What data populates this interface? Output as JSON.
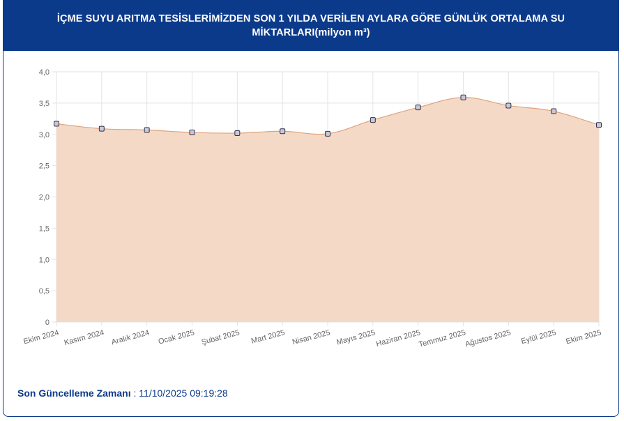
{
  "header": {
    "title": "İÇME SUYU ARITMA TESİSLERİMİZDEN SON 1 YILDA VERİLEN AYLARA GÖRE GÜNLÜK ORTALAMA SU MİKTARLARI(milyon m³)"
  },
  "footer": {
    "label": "Son Güncelleme Zamanı",
    "separator": " : ",
    "value": "11/10/2025 09:19:28"
  },
  "colors": {
    "header_bg": "#0c3a8a",
    "area_fill": "#f4d9c6",
    "line": "#e0a27c",
    "point_fill": "#c9c9d6",
    "point_stroke": "#2f2f4a",
    "grid": "#e3e3e3"
  },
  "chart_data": {
    "type": "area",
    "categories": [
      "Ekim 2024",
      "Kasım 2024",
      "Aralık 2024",
      "Ocak 2025",
      "Şubat 2025",
      "Mart 2025",
      "Nisan 2025",
      "Mayıs 2025",
      "Haziran 2025",
      "Temmuz 2025",
      "Ağustos 2025",
      "Eylül 2025",
      "Ekim 2025"
    ],
    "values": [
      3.17,
      3.09,
      3.07,
      3.03,
      3.02,
      3.05,
      3.01,
      3.23,
      3.43,
      3.59,
      3.46,
      3.37,
      3.15
    ],
    "ylim": [
      0,
      4
    ],
    "yticks": [
      "0",
      "0,5",
      "1,0",
      "1,5",
      "2,0",
      "2,5",
      "3,0",
      "3,5",
      "4,0"
    ],
    "ytick_values": [
      0,
      0.5,
      1,
      1.5,
      2,
      2.5,
      3,
      3.5,
      4
    ],
    "grid": true,
    "legend": "none",
    "title": "",
    "xlabel": "",
    "ylabel": ""
  }
}
